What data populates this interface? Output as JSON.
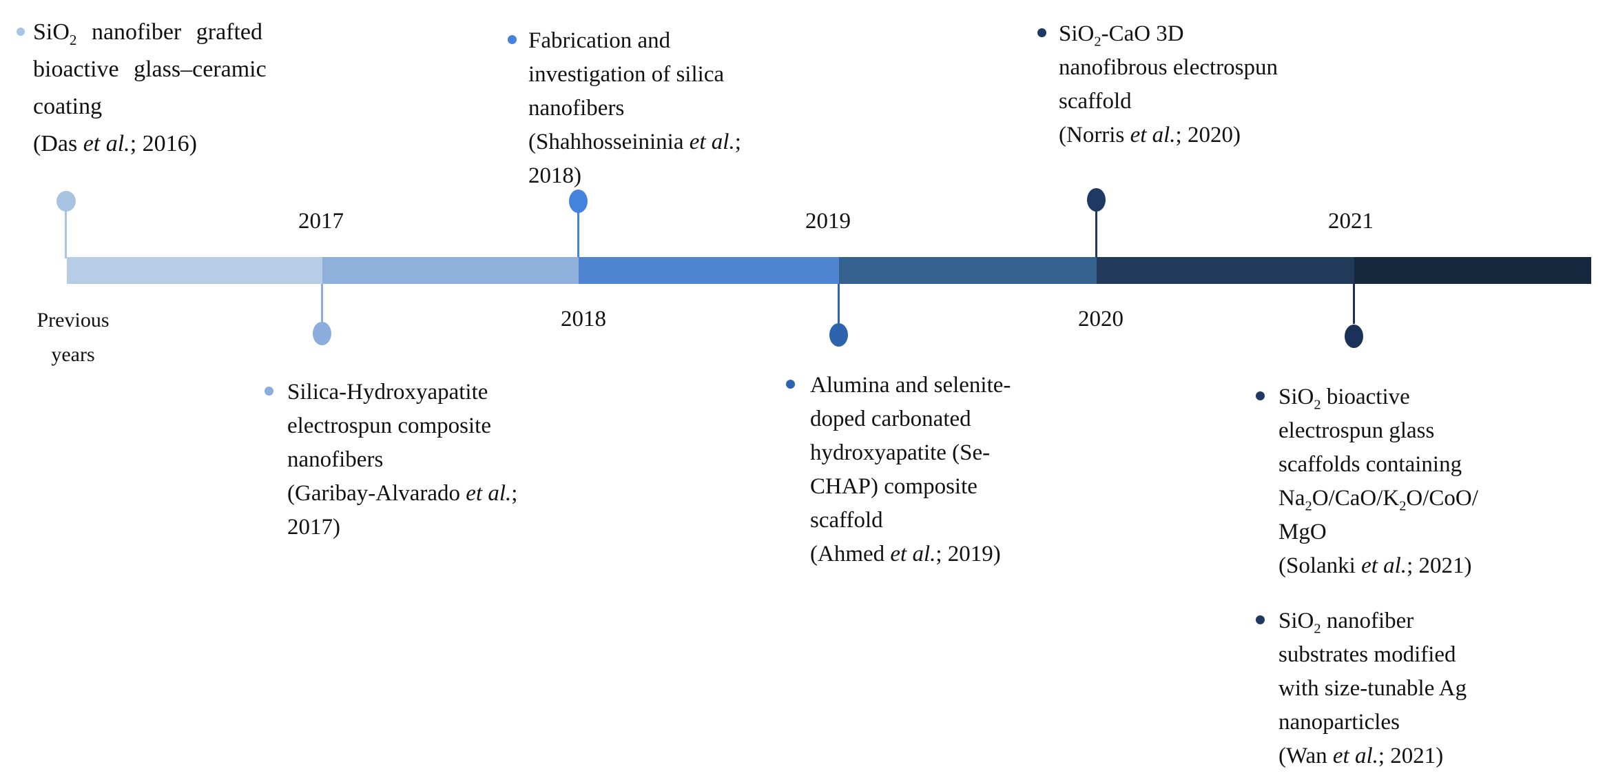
{
  "figure": {
    "background": "#FFFFFF",
    "text_color": "#111111",
    "description_type": "timeline"
  },
  "timeline": {
    "origin_label": {
      "lines": [
        "Previous",
        "years"
      ]
    },
    "year_labels": [
      {
        "text": "2017",
        "side": "above"
      },
      {
        "text": "2018",
        "side": "below"
      },
      {
        "text": "2019",
        "side": "above"
      },
      {
        "text": "2020",
        "side": "below"
      },
      {
        "text": "2021",
        "side": "above"
      }
    ],
    "segments": [
      {
        "color": "#B7CCE6"
      },
      {
        "color": "#8FB0DA"
      },
      {
        "color": "#4E84D0"
      },
      {
        "color": "#35618F"
      },
      {
        "color": "#223A59"
      },
      {
        "color": "#16283E"
      }
    ],
    "markers": [
      {
        "color": "#A9C4E2",
        "side": "above",
        "links_to": "previous-years"
      },
      {
        "color": "#8CACDB",
        "side": "below",
        "links_to": "2017"
      },
      {
        "color": "#4382DD",
        "side": "above",
        "links_to": "2018"
      },
      {
        "color": "#2E64AE",
        "side": "below",
        "links_to": "2019"
      },
      {
        "color": "#1F3864",
        "side": "above",
        "links_to": "2020"
      },
      {
        "color": "#1B3158",
        "side": "below",
        "links_to": "2021"
      }
    ]
  },
  "events": [
    {
      "year": "2016",
      "side": "above",
      "bullet_color": "#A9C5E5",
      "lines": [
        "SiO~2~ nanofiber grafted",
        "bioactive glass–ceramic",
        "coating",
        "(Das *et al.*; 2016)"
      ]
    },
    {
      "year": "2018",
      "side": "above",
      "bullet_color": "#4382DD",
      "lines": [
        "Fabrication and",
        "investigation of silica",
        "nanofibers",
        "(Shahhosseininia *et al.*;",
        "2018)"
      ]
    },
    {
      "year": "2020",
      "side": "above",
      "bullet_color": "#1F3864",
      "lines": [
        "SiO~2~-CaO 3D",
        "nanofibrous electrospun",
        "scaffold",
        "(Norris *et al.*; 2020)"
      ]
    },
    {
      "year": "2017",
      "side": "below",
      "bullet_color": "#8CACDB",
      "lines": [
        "Silica-Hydroxyapatite",
        "electrospun composite",
        "nanofibers",
        "(Garibay-Alvarado *et al.*;",
        "2017)"
      ]
    },
    {
      "year": "2019",
      "side": "below",
      "bullet_color": "#2E64AE",
      "lines": [
        "Alumina and selenite-",
        "doped carbonated",
        "hydroxyapatite (Se-",
        "CHAP) composite",
        "scaffold",
        "(Ahmed *et al.*; 2019)"
      ]
    },
    {
      "year": "2021",
      "side": "below",
      "bullet_color": "#1F3864",
      "lines": [
        "SiO~2~ bioactive",
        "electrospun glass",
        "scaffolds containing",
        "Na~2~O/CaO/K~2~O/CoO/",
        "MgO",
        "(Solanki *et al.*; 2021)"
      ]
    },
    {
      "year": "2021",
      "side": "below",
      "bullet_color": "#1F3864",
      "lines": [
        "SiO~2~ nanofiber",
        "substrates modified",
        "with size-tunable Ag",
        "nanoparticles",
        "(Wan *et al.*; 2021)"
      ]
    }
  ]
}
